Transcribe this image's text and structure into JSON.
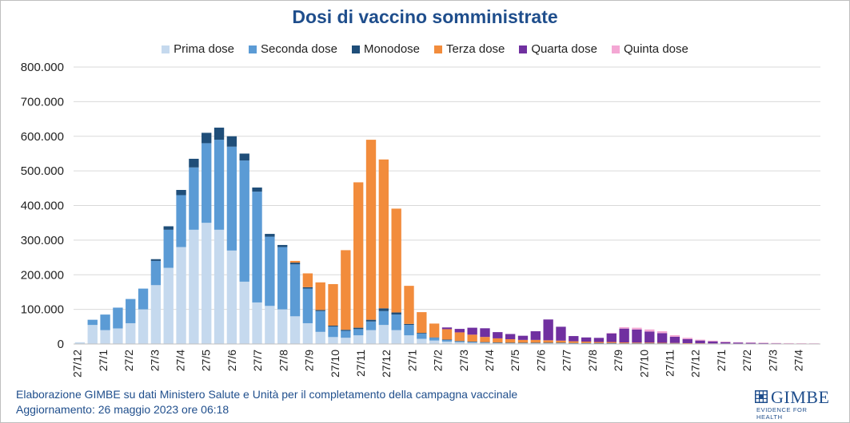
{
  "header": {
    "title": "Dosi di vaccino somministrate"
  },
  "legend": [
    {
      "label": "Prima dose",
      "color": "#c5d9ee"
    },
    {
      "label": "Seconda dose",
      "color": "#5b9bd5"
    },
    {
      "label": "Monodose",
      "color": "#1f4e79"
    },
    {
      "label": "Terza dose",
      "color": "#f28c3c"
    },
    {
      "label": "Quarta dose",
      "color": "#7030a0"
    },
    {
      "label": "Quinta dose",
      "color": "#f4a7d4"
    }
  ],
  "footer": {
    "line1": "Elaborazione GIMBE su dati Ministero Salute e Unità per il completamento della campagna vaccinale",
    "line2": "Aggiornamento: 26 maggio 2023 ore 06:18"
  },
  "logo": {
    "name": "GIMBE",
    "tagline": "EVIDENCE FOR HEALTH"
  },
  "chart_data": {
    "type": "bar",
    "stacked": true,
    "title": "Dosi di vaccino somministrate",
    "xlabel": "",
    "ylabel": "",
    "ylim": [
      0,
      800000
    ],
    "yticks": [
      0,
      100000,
      200000,
      300000,
      400000,
      500000,
      600000,
      700000,
      800000
    ],
    "ytick_labels": [
      "0",
      "100.000",
      "200.000",
      "300.000",
      "400.000",
      "500.000",
      "600.000",
      "700.000",
      "800.000"
    ],
    "grid": true,
    "legend_position": "top",
    "x_unit": "half-month",
    "x_tick_labels": [
      "27/12",
      "27/1",
      "27/2",
      "27/3",
      "27/4",
      "27/5",
      "27/6",
      "27/7",
      "27/8",
      "27/9",
      "27/10",
      "27/11",
      "27/12",
      "27/1",
      "27/2",
      "27/3",
      "27/4",
      "27/5",
      "27/6",
      "27/7",
      "27/8",
      "27/9",
      "27/10",
      "27/11",
      "27/12",
      "27/1",
      "27/2",
      "27/3",
      "27/4"
    ],
    "x": [
      "27/12",
      "12/1",
      "27/1",
      "12/2",
      "27/2",
      "12/3",
      "27/3",
      "12/4",
      "27/4",
      "12/5",
      "27/5",
      "12/6",
      "27/6",
      "12/7",
      "27/7",
      "12/8",
      "27/8",
      "12/9",
      "27/9",
      "12/10",
      "27/10",
      "12/11",
      "27/11",
      "12/12",
      "27/12",
      "12/1",
      "27/1",
      "12/2",
      "27/2",
      "12/3",
      "27/3",
      "12/4",
      "27/4",
      "12/5",
      "27/5",
      "12/6",
      "27/6",
      "12/7",
      "27/7",
      "12/8",
      "27/8",
      "12/9",
      "27/9",
      "12/10",
      "27/10",
      "12/11",
      "27/11",
      "12/12",
      "27/12",
      "12/1",
      "27/1",
      "12/2",
      "27/2",
      "12/3",
      "27/3",
      "12/4",
      "27/4",
      "12/5",
      "27/5"
    ],
    "series": [
      {
        "name": "Prima dose",
        "color": "#c5d9ee",
        "values": [
          5000,
          55000,
          40000,
          45000,
          60000,
          100000,
          170000,
          220000,
          280000,
          330000,
          350000,
          330000,
          270000,
          180000,
          120000,
          110000,
          100000,
          80000,
          60000,
          35000,
          20000,
          18000,
          25000,
          40000,
          55000,
          40000,
          25000,
          15000,
          10000,
          7000,
          5000,
          4000,
          3000,
          2500,
          2000,
          2000,
          2000,
          2000,
          2000,
          1500,
          1500,
          1500,
          1500,
          1000,
          1000,
          1000,
          1000,
          1000,
          800,
          700,
          600,
          500,
          400,
          300,
          300,
          200,
          200,
          200,
          200
        ]
      },
      {
        "name": "Seconda dose",
        "color": "#5b9bd5",
        "values": [
          0,
          15000,
          45000,
          60000,
          70000,
          60000,
          70000,
          110000,
          150000,
          180000,
          230000,
          260000,
          300000,
          350000,
          320000,
          200000,
          180000,
          150000,
          100000,
          60000,
          30000,
          20000,
          18000,
          25000,
          40000,
          45000,
          30000,
          15000,
          8000,
          5000,
          3000,
          2500,
          2000,
          1500,
          1500,
          1500,
          1500,
          1500,
          1500,
          1200,
          1200,
          1000,
          1000,
          800,
          800,
          800,
          700,
          600,
          500,
          400,
          300,
          300,
          200,
          200,
          200,
          150,
          150,
          100,
          100
        ]
      },
      {
        "name": "Monodose",
        "color": "#1f4e79",
        "values": [
          0,
          0,
          0,
          0,
          0,
          0,
          5000,
          10000,
          15000,
          25000,
          30000,
          35000,
          30000,
          20000,
          12000,
          8000,
          6000,
          5000,
          4000,
          3000,
          3000,
          3000,
          4000,
          5000,
          8000,
          6000,
          3000,
          2000,
          1000,
          800,
          600,
          500,
          400,
          300,
          300,
          300,
          300,
          300,
          300,
          200,
          200,
          200,
          200,
          200,
          200,
          200,
          200,
          200,
          100,
          100,
          100,
          100,
          100,
          100,
          100,
          100,
          100,
          100,
          100
        ]
      },
      {
        "name": "Terza dose",
        "color": "#f28c3c",
        "values": [
          0,
          0,
          0,
          0,
          0,
          0,
          0,
          0,
          0,
          0,
          0,
          0,
          0,
          0,
          0,
          0,
          0,
          5000,
          40000,
          80000,
          120000,
          230000,
          420000,
          520000,
          430000,
          300000,
          110000,
          60000,
          40000,
          30000,
          25000,
          20000,
          15000,
          12000,
          10000,
          8000,
          8000,
          7000,
          6000,
          5000,
          4000,
          3000,
          3000,
          2500,
          2000,
          2000,
          1500,
          1200,
          1000,
          800,
          600,
          500,
          400,
          300,
          300,
          200,
          200,
          150,
          150
        ]
      },
      {
        "name": "Quarta dose",
        "color": "#7030a0",
        "values": [
          0,
          0,
          0,
          0,
          0,
          0,
          0,
          0,
          0,
          0,
          0,
          0,
          0,
          0,
          0,
          0,
          0,
          0,
          0,
          0,
          0,
          0,
          0,
          0,
          0,
          0,
          0,
          0,
          0,
          5000,
          10000,
          20000,
          25000,
          18000,
          15000,
          12000,
          25000,
          60000,
          40000,
          15000,
          12000,
          12000,
          25000,
          40000,
          38000,
          32000,
          28000,
          18000,
          12000,
          8000,
          6000,
          4000,
          3000,
          2500,
          2000,
          1500,
          1200,
          1000,
          800
        ]
      },
      {
        "name": "Quinta dose",
        "color": "#f4a7d4",
        "values": [
          0,
          0,
          0,
          0,
          0,
          0,
          0,
          0,
          0,
          0,
          0,
          0,
          0,
          0,
          0,
          0,
          0,
          0,
          0,
          0,
          0,
          0,
          0,
          0,
          0,
          0,
          0,
          0,
          0,
          0,
          0,
          0,
          0,
          0,
          0,
          0,
          0,
          0,
          0,
          0,
          0,
          0,
          1000,
          4000,
          5000,
          6000,
          5500,
          4500,
          3500,
          2500,
          2000,
          1500,
          1200,
          1000,
          900,
          800,
          700,
          600,
          500
        ]
      }
    ]
  }
}
